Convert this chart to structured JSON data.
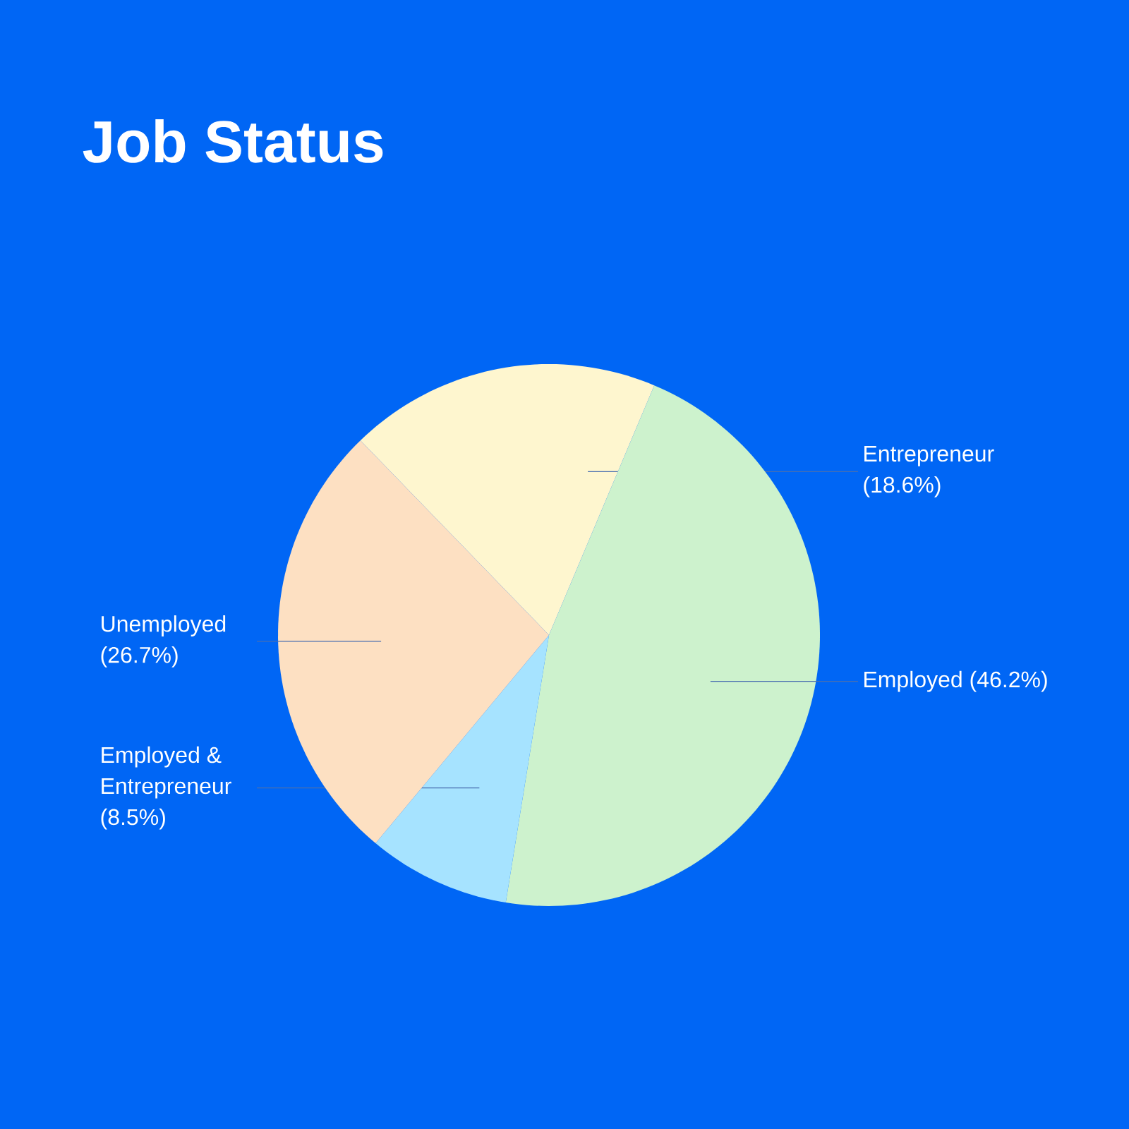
{
  "chart_data": {
    "type": "pie",
    "title": "Job Status",
    "categories": [
      "Entrepreneur",
      "Employed",
      "Employed & Entrepreneur",
      "Unemployed"
    ],
    "values": [
      18.6,
      46.2,
      8.5,
      26.7
    ],
    "colors": [
      "#fef6cf",
      "#cdf2cd",
      "#a6e3ff",
      "#fde0c2"
    ],
    "value_labels": [
      "(18.6%)",
      "(46.2%)",
      "(8.5%)",
      "(26.7%)"
    ]
  }
}
